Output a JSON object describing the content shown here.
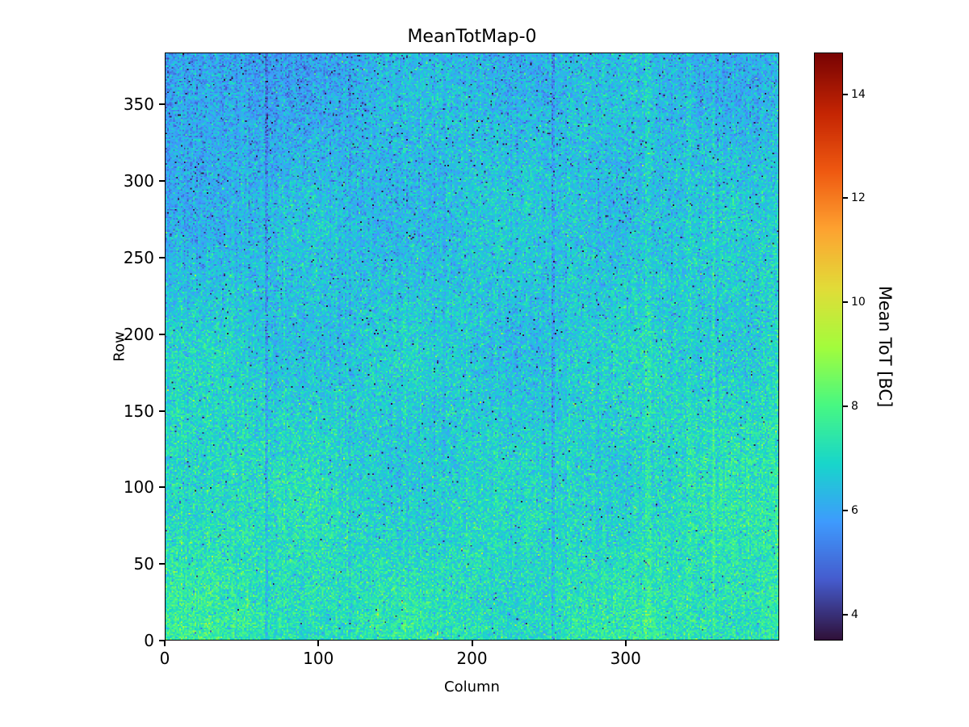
{
  "figure": {
    "background": "#ffffff"
  },
  "chart_data": {
    "type": "heatmap",
    "title": "MeanTotMap-0",
    "xlabel": "Column",
    "ylabel": "Row",
    "colorbar_label": "Mean ToT [BC]",
    "x_range": [
      0,
      400
    ],
    "y_range": [
      0,
      384
    ],
    "x_ticks": [
      0,
      100,
      200,
      300
    ],
    "y_ticks": [
      0,
      50,
      100,
      150,
      200,
      250,
      300,
      350
    ],
    "colorbar_ticks": [
      4,
      6,
      8,
      10,
      12,
      14
    ],
    "value_range": [
      3.5,
      14.8
    ],
    "colormap": {
      "name": "turbo",
      "stops": [
        {
          "t": 0.0,
          "color": "#30123b"
        },
        {
          "t": 0.1,
          "color": "#455bcd"
        },
        {
          "t": 0.2,
          "color": "#3e9bfe"
        },
        {
          "t": 0.3,
          "color": "#18d6cb"
        },
        {
          "t": 0.4,
          "color": "#48f882"
        },
        {
          "t": 0.5,
          "color": "#a4fc3c"
        },
        {
          "t": 0.6,
          "color": "#e2dc38"
        },
        {
          "t": 0.7,
          "color": "#fea331"
        },
        {
          "t": 0.8,
          "color": "#ef5911"
        },
        {
          "t": 0.9,
          "color": "#c42503"
        },
        {
          "t": 1.0,
          "color": "#7a0403"
        }
      ]
    },
    "distribution": {
      "description": "Noisy per-pixel mean time-over-threshold map; values mostly 5.5-9 BC (blue-cyan-green speckle with sparse yellow), lower/bluer toward the top and top-left corner, higher/greener toward the bottom and middle, with sparse near-black low outlier pixels and faint vertical stripe structure",
      "base_mean": 7.35,
      "row_gradient": -1.0,
      "topleft_extra": -0.55,
      "noise_sigma": 0.58,
      "column_sigma": 0.13,
      "lowfreq_amp": 0.2,
      "dark_outlier_fraction": 0.012,
      "dark_outlier_depth": [
        1.5,
        3.3
      ],
      "bright_outlier_fraction": 0.004,
      "bright_outlier_boost": [
        1.0,
        2.2
      ]
    },
    "stripes": [
      {
        "x": 65,
        "w": 2,
        "dv": -0.75
      },
      {
        "x": 120,
        "w": 1,
        "dv": -0.45
      },
      {
        "x": 252,
        "w": 2,
        "dv": -0.65
      },
      {
        "x": 282,
        "w": 1,
        "dv": -0.4
      },
      {
        "x": 313,
        "w": 4,
        "dv": 0.35
      },
      {
        "x": 340,
        "w": 3,
        "dv": 0.3
      },
      {
        "x": 357,
        "w": 2,
        "dv": 0.25
      }
    ]
  }
}
